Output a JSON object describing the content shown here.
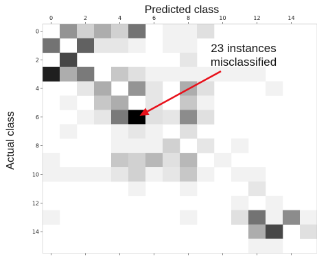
{
  "chart_data": {
    "type": "heatmap",
    "title": "Predicted class",
    "xlabel": "Predicted class",
    "ylabel": "Actual class",
    "x_ticks": [
      0,
      2,
      4,
      6,
      8,
      10,
      12,
      14
    ],
    "y_ticks": [
      0,
      2,
      4,
      6,
      8,
      10,
      12,
      14
    ],
    "size": 16,
    "colormap": "white-to-black",
    "cells": [
      [
        0,
        0,
        0.0
      ],
      [
        0,
        1,
        0.42
      ],
      [
        0,
        2,
        0.18
      ],
      [
        0,
        3,
        0.32
      ],
      [
        0,
        4,
        0.18
      ],
      [
        0,
        5,
        0.55
      ],
      [
        0,
        7,
        0.05
      ],
      [
        0,
        8,
        0.05
      ],
      [
        0,
        9,
        0.12
      ],
      [
        1,
        0,
        0.55
      ],
      [
        1,
        2,
        0.62
      ],
      [
        1,
        3,
        0.1
      ],
      [
        1,
        4,
        0.1
      ],
      [
        1,
        5,
        0.05
      ],
      [
        1,
        7,
        0.05
      ],
      [
        1,
        8,
        0.05
      ],
      [
        2,
        1,
        0.72
      ],
      [
        2,
        8,
        0.1
      ],
      [
        3,
        0,
        0.88
      ],
      [
        3,
        1,
        0.32
      ],
      [
        3,
        2,
        0.52
      ],
      [
        3,
        4,
        0.22
      ],
      [
        3,
        5,
        0.12
      ],
      [
        3,
        6,
        0.05
      ],
      [
        3,
        7,
        0.05
      ],
      [
        3,
        8,
        0.05
      ],
      [
        3,
        9,
        0.05
      ],
      [
        3,
        10,
        0.05
      ],
      [
        3,
        11,
        0.05
      ],
      [
        3,
        12,
        0.05
      ],
      [
        4,
        2,
        0.1
      ],
      [
        4,
        3,
        0.32
      ],
      [
        4,
        5,
        0.42
      ],
      [
        4,
        6,
        0.1
      ],
      [
        4,
        8,
        0.32
      ],
      [
        4,
        9,
        0.12
      ],
      [
        4,
        13,
        0.05
      ],
      [
        5,
        1,
        0.05
      ],
      [
        5,
        3,
        0.22
      ],
      [
        5,
        4,
        0.32
      ],
      [
        5,
        6,
        0.1
      ],
      [
        5,
        8,
        0.22
      ],
      [
        5,
        9,
        0.05
      ],
      [
        6,
        2,
        0.05
      ],
      [
        6,
        3,
        0.1
      ],
      [
        6,
        4,
        0.52
      ],
      [
        6,
        5,
        1.0
      ],
      [
        6,
        6,
        0.12
      ],
      [
        6,
        7,
        0.1
      ],
      [
        6,
        8,
        0.45
      ],
      [
        6,
        9,
        0.12
      ],
      [
        7,
        1,
        0.05
      ],
      [
        7,
        4,
        0.05
      ],
      [
        7,
        5,
        0.1
      ],
      [
        7,
        6,
        0.05
      ],
      [
        7,
        8,
        0.12
      ],
      [
        8,
        4,
        0.05
      ],
      [
        8,
        5,
        0.05
      ],
      [
        8,
        6,
        0.05
      ],
      [
        8,
        7,
        0.18
      ],
      [
        8,
        9,
        0.1
      ],
      [
        8,
        11,
        0.05
      ],
      [
        9,
        0,
        0.05
      ],
      [
        9,
        4,
        0.22
      ],
      [
        9,
        5,
        0.18
      ],
      [
        9,
        6,
        0.28
      ],
      [
        9,
        7,
        0.12
      ],
      [
        9,
        8,
        0.28
      ],
      [
        9,
        10,
        0.05
      ],
      [
        10,
        0,
        0.05
      ],
      [
        10,
        1,
        0.05
      ],
      [
        10,
        2,
        0.05
      ],
      [
        10,
        3,
        0.05
      ],
      [
        10,
        4,
        0.1
      ],
      [
        10,
        5,
        0.18
      ],
      [
        10,
        6,
        0.05
      ],
      [
        10,
        7,
        0.1
      ],
      [
        10,
        8,
        0.22
      ],
      [
        10,
        9,
        0.05
      ],
      [
        10,
        11,
        0.05
      ],
      [
        10,
        12,
        0.05
      ],
      [
        11,
        5,
        0.05
      ],
      [
        11,
        8,
        0.05
      ],
      [
        11,
        12,
        0.1
      ],
      [
        12,
        11,
        0.05
      ],
      [
        12,
        13,
        0.05
      ],
      [
        13,
        0,
        0.05
      ],
      [
        13,
        8,
        0.05
      ],
      [
        13,
        11,
        0.12
      ],
      [
        13,
        12,
        0.55
      ],
      [
        13,
        13,
        0.05
      ],
      [
        13,
        14,
        0.45
      ],
      [
        13,
        15,
        0.05
      ],
      [
        14,
        12,
        0.32
      ],
      [
        14,
        13,
        0.72
      ],
      [
        14,
        15,
        0.12
      ],
      [
        15,
        12,
        0.05
      ],
      [
        15,
        13,
        0.05
      ]
    ],
    "annotation": {
      "lines": [
        "23 instances",
        "misclassified"
      ],
      "points_to": {
        "row": 6,
        "col": 5
      }
    },
    "arrow_color": "#e8101a"
  }
}
